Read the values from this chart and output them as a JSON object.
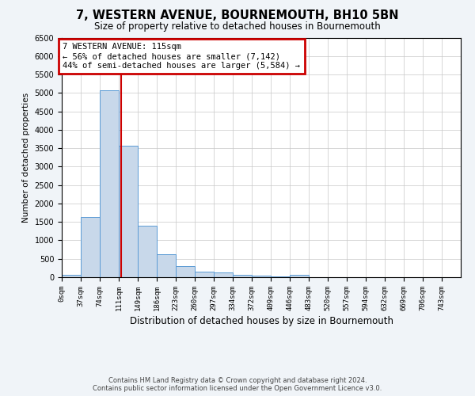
{
  "title": "7, WESTERN AVENUE, BOURNEMOUTH, BH10 5BN",
  "subtitle": "Size of property relative to detached houses in Bournemouth",
  "xlabel": "Distribution of detached houses by size in Bournemouth",
  "ylabel": "Number of detached properties",
  "footer1": "Contains HM Land Registry data © Crown copyright and database right 2024.",
  "footer2": "Contains public sector information licensed under the Open Government Licence v3.0.",
  "bin_edges": [
    0,
    37,
    74,
    111,
    148,
    185,
    222,
    259,
    296,
    333,
    370,
    407,
    444,
    481,
    518,
    555,
    592,
    629,
    666,
    703,
    740
  ],
  "bin_labels": [
    "0sqm",
    "37sqm",
    "74sqm",
    "111sqm",
    "149sqm",
    "186sqm",
    "223sqm",
    "260sqm",
    "297sqm",
    "334sqm",
    "372sqm",
    "409sqm",
    "446sqm",
    "483sqm",
    "520sqm",
    "557sqm",
    "594sqm",
    "632sqm",
    "669sqm",
    "706sqm",
    "743sqm"
  ],
  "bar_heights": [
    75,
    1625,
    5075,
    3575,
    1400,
    625,
    300,
    150,
    125,
    75,
    50,
    25,
    75,
    0,
    0,
    0,
    0,
    0,
    0,
    0
  ],
  "bar_color": "#c8d8ea",
  "bar_edge_color": "#5b9bd5",
  "property_size": 115,
  "vline_color": "#cc0000",
  "annotation_line1": "7 WESTERN AVENUE: 115sqm",
  "annotation_line2": "← 56% of detached houses are smaller (7,142)",
  "annotation_line3": "44% of semi-detached houses are larger (5,584) →",
  "annotation_box_color": "#cc0000",
  "ylim": [
    0,
    6500
  ],
  "yticks": [
    0,
    500,
    1000,
    1500,
    2000,
    2500,
    3000,
    3500,
    4000,
    4500,
    5000,
    5500,
    6000,
    6500
  ],
  "background_color": "#f0f4f8",
  "plot_bg_color": "#ffffff",
  "grid_color": "#c8c8c8",
  "title_fontsize": 10.5,
  "subtitle_fontsize": 8.5,
  "ylabel_fontsize": 7.5,
  "xlabel_fontsize": 8.5,
  "tick_fontsize": 6.5,
  "ytick_fontsize": 7,
  "ann_fontsize": 7.5,
  "footer_fontsize": 6
}
